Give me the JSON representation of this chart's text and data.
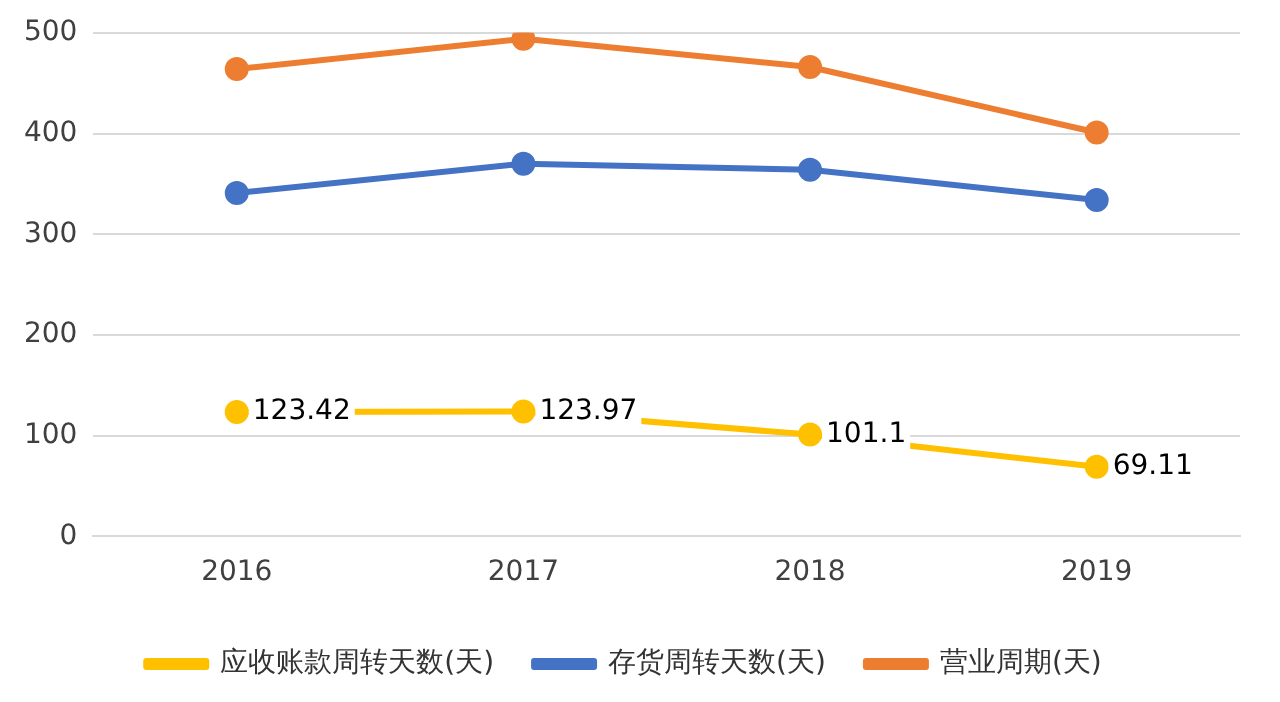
{
  "chart_data": {
    "type": "line",
    "categories": [
      "2016",
      "2017",
      "2018",
      "2019"
    ],
    "series": [
      {
        "name": "应收账款周转天数(天)",
        "color": "#ffc000",
        "values": [
          123.42,
          123.97,
          101.1,
          69.11
        ],
        "value_labels": [
          "123.42",
          "123.97",
          "101.1",
          "69.11"
        ]
      },
      {
        "name": "存货周转天数(天)",
        "color": "#4472c4",
        "values": [
          341,
          370,
          364,
          334
        ]
      },
      {
        "name": "营业周期(天)",
        "color": "#ed7d31",
        "values": [
          464,
          494,
          466,
          401
        ]
      }
    ],
    "ylim": [
      0,
      500
    ],
    "yticks": [
      0,
      100,
      200,
      300,
      400,
      500
    ],
    "grid": "y",
    "legend": "bottom",
    "marker": "circle",
    "line_style": "solid"
  }
}
